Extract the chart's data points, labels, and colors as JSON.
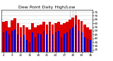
{
  "title": "Dew Point Daily High/Low",
  "ylim": [
    22,
    78
  ],
  "yticks": [
    25,
    30,
    35,
    40,
    45,
    50,
    55,
    60,
    65,
    70,
    75
  ],
  "background_color": "#ffffff",
  "bar_width": 0.45,
  "highs": [
    62,
    63,
    55,
    64,
    67,
    60,
    55,
    57,
    55,
    52,
    60,
    55,
    57,
    58,
    62,
    58,
    62,
    58,
    60,
    62,
    58,
    60,
    62,
    65,
    68,
    70,
    65,
    63,
    58,
    55,
    52
  ],
  "lows": [
    48,
    50,
    45,
    50,
    52,
    45,
    42,
    44,
    38,
    35,
    48,
    42,
    46,
    45,
    50,
    45,
    50,
    45,
    48,
    50,
    42,
    46,
    48,
    52,
    55,
    58,
    50,
    48,
    42,
    40,
    38
  ],
  "high_color": "#dd0000",
  "low_color": "#0000cc",
  "grid_color": "#bbbbbb",
  "title_fontsize": 4.5,
  "tick_fontsize": 3.0,
  "dashed_indices": [
    23,
    24,
    25
  ],
  "n_days": 31,
  "xlabels": [
    "6",
    "",
    "",
    "9",
    "",
    "",
    "12",
    "",
    "",
    "15",
    "",
    "",
    "18",
    "",
    "",
    "21",
    "",
    "",
    "24",
    "",
    "",
    "27",
    "",
    "",
    "30",
    "",
    "",
    "",
    "",
    "",
    ""
  ]
}
